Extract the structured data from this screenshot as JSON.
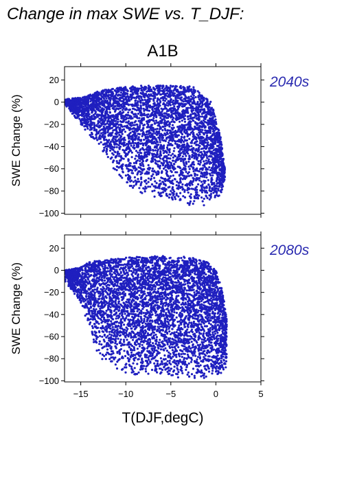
{
  "header": {
    "title": "Change in max SWE vs. T_DJF:",
    "scenario": "A1B"
  },
  "colors": {
    "points": "#1f1fbf",
    "period_label": "#2a2ab0",
    "axes": "#000000"
  },
  "chart_data": [
    {
      "type": "scatter",
      "panel_label": "2040s",
      "ylabel": "SWE Change (%)",
      "xlabel": "",
      "xlim": [
        -16.8,
        5
      ],
      "ylim": [
        -101,
        32
      ],
      "xticks": [
        -15,
        -10,
        -5,
        0,
        5
      ],
      "yticks": [
        -100,
        -80,
        -60,
        -40,
        -20,
        0,
        20
      ],
      "ytick_labels": [
        "−100",
        "−80",
        "−60",
        "−40",
        "−20",
        "0",
        "20"
      ],
      "xtick_labels": [],
      "envelope": {
        "upper": [
          [
            -16.8,
            3
          ],
          [
            -15,
            4
          ],
          [
            -13,
            10
          ],
          [
            -11,
            13
          ],
          [
            -8,
            15
          ],
          [
            -5,
            15
          ],
          [
            -2.5,
            14
          ],
          [
            -1.5,
            6
          ],
          [
            -0.5,
            0
          ],
          [
            0.5,
            -30
          ],
          [
            1,
            -60
          ]
        ],
        "lower": [
          [
            -16.8,
            -2
          ],
          [
            -15,
            -20
          ],
          [
            -13,
            -40
          ],
          [
            -11,
            -65
          ],
          [
            -9,
            -82
          ],
          [
            -7,
            -86
          ],
          [
            -5,
            -88
          ],
          [
            -3,
            -93
          ],
          [
            -2,
            -95
          ],
          [
            -1,
            -92
          ],
          [
            0.5,
            -85
          ],
          [
            1,
            -70
          ]
        ]
      },
      "point_count": 4200,
      "grid": false,
      "legend": "none"
    },
    {
      "type": "scatter",
      "panel_label": "2080s",
      "ylabel": "SWE Change (%)",
      "xlabel": "T(DJF,degC)",
      "xlim": [
        -16.8,
        5
      ],
      "ylim": [
        -101,
        32
      ],
      "xticks": [
        -15,
        -10,
        -5,
        0,
        5
      ],
      "yticks": [
        -100,
        -80,
        -60,
        -40,
        -20,
        0,
        20
      ],
      "ytick_labels": [
        "−100",
        "−80",
        "−60",
        "−40",
        "−20",
        "0",
        "20"
      ],
      "xtick_labels": [
        "−15",
        "−10",
        "−5",
        "0",
        "5"
      ],
      "envelope": {
        "upper": [
          [
            -16.8,
            0
          ],
          [
            -15,
            3
          ],
          [
            -14,
            8
          ],
          [
            -12,
            10
          ],
          [
            -9,
            12
          ],
          [
            -6,
            13
          ],
          [
            -3,
            12
          ],
          [
            -1,
            8
          ],
          [
            0,
            0
          ],
          [
            0.8,
            -20
          ],
          [
            1.2,
            -45
          ]
        ],
        "lower": [
          [
            -16.8,
            -10
          ],
          [
            -15,
            -30
          ],
          [
            -14,
            -55
          ],
          [
            -13,
            -80
          ],
          [
            -11,
            -90
          ],
          [
            -9,
            -95
          ],
          [
            -6,
            -97
          ],
          [
            -3,
            -98
          ],
          [
            -1,
            -98
          ],
          [
            0.5,
            -95
          ],
          [
            1.2,
            -88
          ]
        ]
      },
      "point_count": 5000,
      "grid": false,
      "legend": "none"
    }
  ]
}
